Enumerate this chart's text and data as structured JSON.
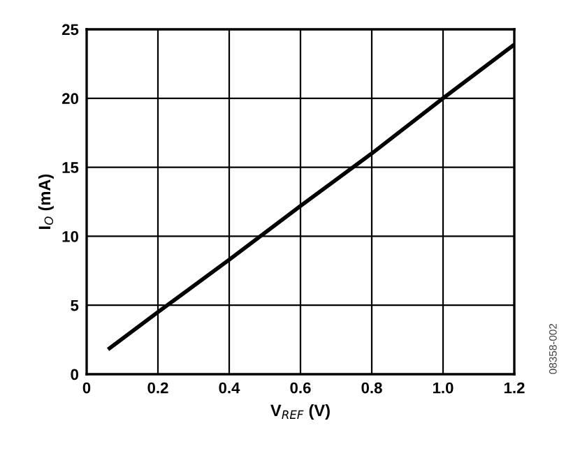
{
  "chart_data": {
    "type": "line",
    "xlabel": "V$_{REF}$ (V)",
    "ylabel": "I$_{O}$ (mA)",
    "annotations": [
      "08358-002"
    ],
    "series": [
      {
        "color": "#000000",
        "x": [
          0.06,
          0.2,
          0.4,
          0.6,
          0.8,
          1.0,
          1.2
        ],
        "values": [
          1.8,
          4.5,
          8.3,
          12.2,
          16,
          20,
          23.9
        ]
      }
    ],
    "xlim": [
      0,
      1.2
    ],
    "xticks": [
      {
        "value": 0,
        "label": "0"
      },
      0.2,
      0.4,
      0.6,
      0.8,
      {
        "value": 1.0,
        "label": "1.0"
      },
      1.2
    ],
    "ylim": [
      0,
      25
    ],
    "yticks": [
      0,
      5,
      10,
      15,
      20,
      25
    ],
    "grid": true,
    "marker": "none",
    "line_style": "solid"
  }
}
